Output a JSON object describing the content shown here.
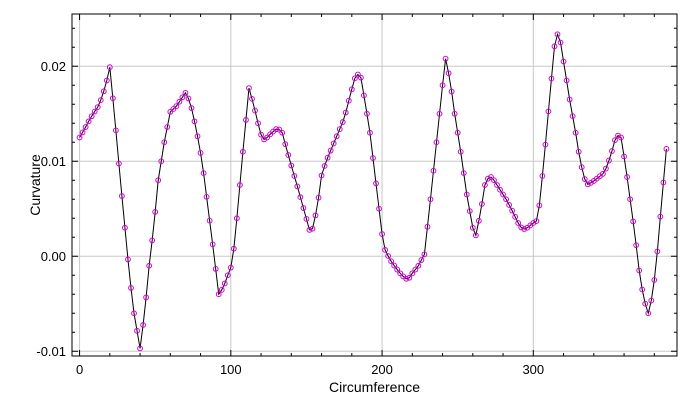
{
  "chart_data": {
    "type": "line",
    "title": "",
    "xlabel": "Circumference",
    "ylabel": "Curvature",
    "xlim": [
      -5,
      395
    ],
    "ylim": [
      -0.0105,
      0.0255
    ],
    "xticks": [
      0,
      100,
      200,
      300
    ],
    "xtick_labels": [
      "0",
      "100",
      "200",
      "300"
    ],
    "yticks": [
      -0.01,
      0.0,
      0.01,
      0.02
    ],
    "ytick_labels": [
      "-0.01",
      "0.00",
      "0.01",
      "0.02"
    ],
    "grid": true,
    "marker": "circle",
    "line_color": "#000000",
    "marker_color": "#d400d4",
    "marker_spacing": 2,
    "series": [
      {
        "keypoints": [
          [
            0,
            0.0125
          ],
          [
            3,
            0.0133
          ],
          [
            6,
            0.0142
          ],
          [
            9,
            0.015
          ],
          [
            12,
            0.0157
          ],
          [
            15,
            0.0168
          ],
          [
            18,
            0.0185
          ],
          [
            20,
            0.0199
          ],
          [
            23,
            0.015
          ],
          [
            27,
            0.008
          ],
          [
            30,
            0.003
          ],
          [
            33,
            -0.002
          ],
          [
            36,
            -0.006
          ],
          [
            40,
            -0.0097
          ],
          [
            43,
            -0.006
          ],
          [
            46,
            -0.001
          ],
          [
            49,
            0.003
          ],
          [
            52,
            0.008
          ],
          [
            56,
            0.012
          ],
          [
            60,
            0.0152
          ],
          [
            64,
            0.0158
          ],
          [
            67,
            0.0165
          ],
          [
            70,
            0.0172
          ],
          [
            73,
            0.0163
          ],
          [
            77,
            0.0135
          ],
          [
            81,
            0.01
          ],
          [
            85,
            0.005
          ],
          [
            89,
            0.0
          ],
          [
            92,
            -0.004
          ],
          [
            95,
            -0.0033
          ],
          [
            98,
            -0.002
          ],
          [
            101,
            -0.0008
          ],
          [
            104,
            0.004
          ],
          [
            108,
            0.011
          ],
          [
            112,
            0.0177
          ],
          [
            115,
            0.016
          ],
          [
            118,
            0.014
          ],
          [
            121,
            0.0122
          ],
          [
            124,
            0.0125
          ],
          [
            127,
            0.013
          ],
          [
            131,
            0.0135
          ],
          [
            134,
            0.013
          ],
          [
            137,
            0.0112
          ],
          [
            141,
            0.009
          ],
          [
            145,
            0.0068
          ],
          [
            149,
            0.0045
          ],
          [
            153,
            0.0022
          ],
          [
            157,
            0.005
          ],
          [
            160,
            0.0085
          ],
          [
            163,
            0.01
          ],
          [
            167,
            0.0115
          ],
          [
            171,
            0.013
          ],
          [
            175,
            0.0145
          ],
          [
            179,
            0.017
          ],
          [
            183,
            0.0193
          ],
          [
            186,
            0.0188
          ],
          [
            189,
            0.016
          ],
          [
            192,
            0.013
          ],
          [
            195,
            0.009
          ],
          [
            198,
            0.005
          ],
          [
            201,
            0.001
          ],
          [
            205,
            -0.0003
          ],
          [
            209,
            -0.0012
          ],
          [
            213,
            -0.002
          ],
          [
            217,
            -0.0025
          ],
          [
            220,
            -0.0018
          ],
          [
            224,
            -0.001
          ],
          [
            228,
            0.0002
          ],
          [
            232,
            0.006
          ],
          [
            236,
            0.012
          ],
          [
            240,
            0.018
          ],
          [
            242,
            0.0208
          ],
          [
            245,
            0.0185
          ],
          [
            248,
            0.015
          ],
          [
            252,
            0.011
          ],
          [
            256,
            0.0065
          ],
          [
            260,
            0.003
          ],
          [
            262,
            0.0022
          ],
          [
            265,
            0.0045
          ],
          [
            268,
            0.0075
          ],
          [
            271,
            0.0085
          ],
          [
            274,
            0.008
          ],
          [
            278,
            0.007
          ],
          [
            282,
            0.006
          ],
          [
            286,
            0.0048
          ],
          [
            290,
            0.0035
          ],
          [
            293,
            0.0028
          ],
          [
            296,
            0.003
          ],
          [
            300,
            0.0035
          ],
          [
            303,
            0.0038
          ],
          [
            307,
            0.01
          ],
          [
            311,
            0.017
          ],
          [
            315,
            0.0238
          ],
          [
            318,
            0.0225
          ],
          [
            321,
            0.0195
          ],
          [
            324,
            0.0165
          ],
          [
            328,
            0.013
          ],
          [
            331,
            0.01
          ],
          [
            335,
            0.0075
          ],
          [
            339,
            0.0078
          ],
          [
            343,
            0.0083
          ],
          [
            347,
            0.0088
          ],
          [
            351,
            0.0105
          ],
          [
            355,
            0.0128
          ],
          [
            358,
            0.0125
          ],
          [
            361,
            0.0095
          ],
          [
            364,
            0.006
          ],
          [
            367,
            0.0025
          ],
          [
            370,
            -0.0015
          ],
          [
            373,
            -0.0045
          ],
          [
            376,
            -0.006
          ],
          [
            379,
            -0.004
          ],
          [
            382,
            0.0005
          ],
          [
            385,
            0.006
          ],
          [
            388,
            0.0113
          ]
        ]
      }
    ]
  }
}
